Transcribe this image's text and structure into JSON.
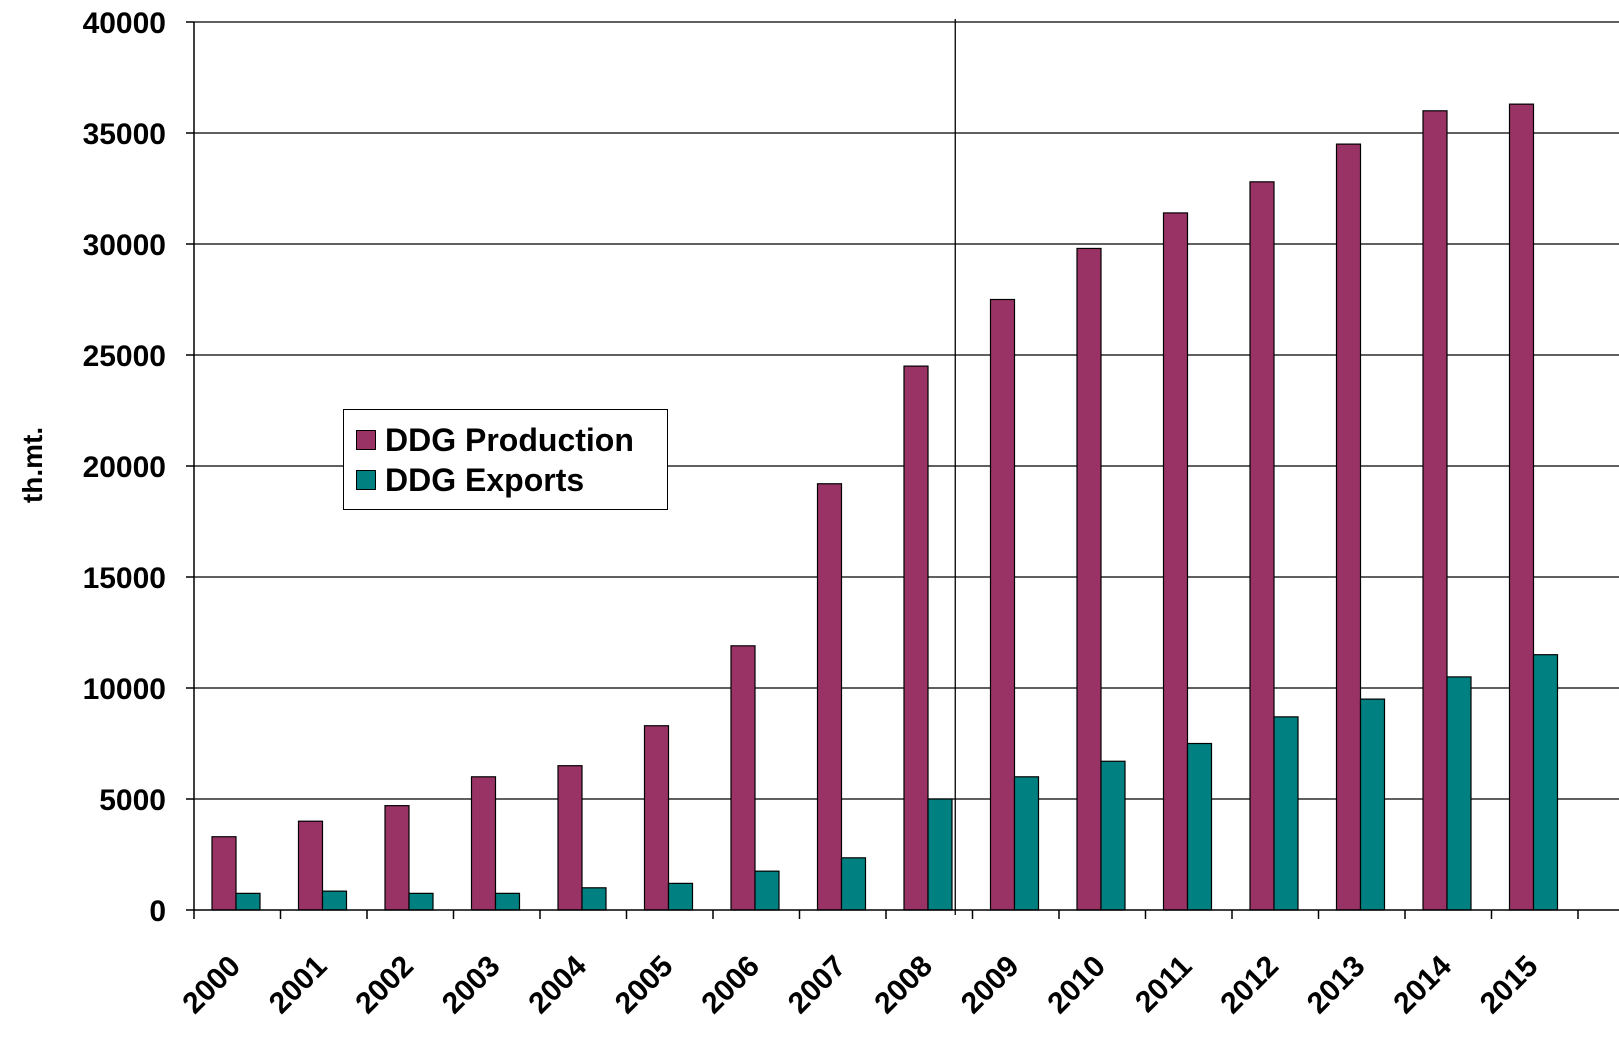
{
  "chart_data": {
    "type": "bar",
    "categories": [
      "2000",
      "2001",
      "2002",
      "2003",
      "2004",
      "2005",
      "2006",
      "2007",
      "2008",
      "2009",
      "2010",
      "2011",
      "2012",
      "2013",
      "2014",
      "2015"
    ],
    "series": [
      {
        "name": "DDG Production",
        "color": "#993366",
        "values": [
          3300,
          4000,
          4700,
          6000,
          6500,
          8300,
          11900,
          19200,
          24500,
          27500,
          29800,
          31400,
          32800,
          34500,
          36000,
          36300
        ]
      },
      {
        "name": "DDG Exports",
        "color": "#008080",
        "values": [
          750,
          850,
          750,
          750,
          1000,
          1200,
          1750,
          2350,
          5000,
          6000,
          6700,
          7500,
          8700,
          9500,
          10500,
          11500
        ]
      }
    ],
    "ylabel": "th.mt.",
    "xlabel": "",
    "title": "",
    "ylim": [
      0,
      40000
    ],
    "yticks": [
      "0",
      "5000",
      "10000",
      "15000",
      "20000",
      "25000",
      "30000",
      "35000",
      "40000"
    ],
    "grid": true,
    "vertical_line_after": "2008",
    "legend_position": "center-left"
  }
}
